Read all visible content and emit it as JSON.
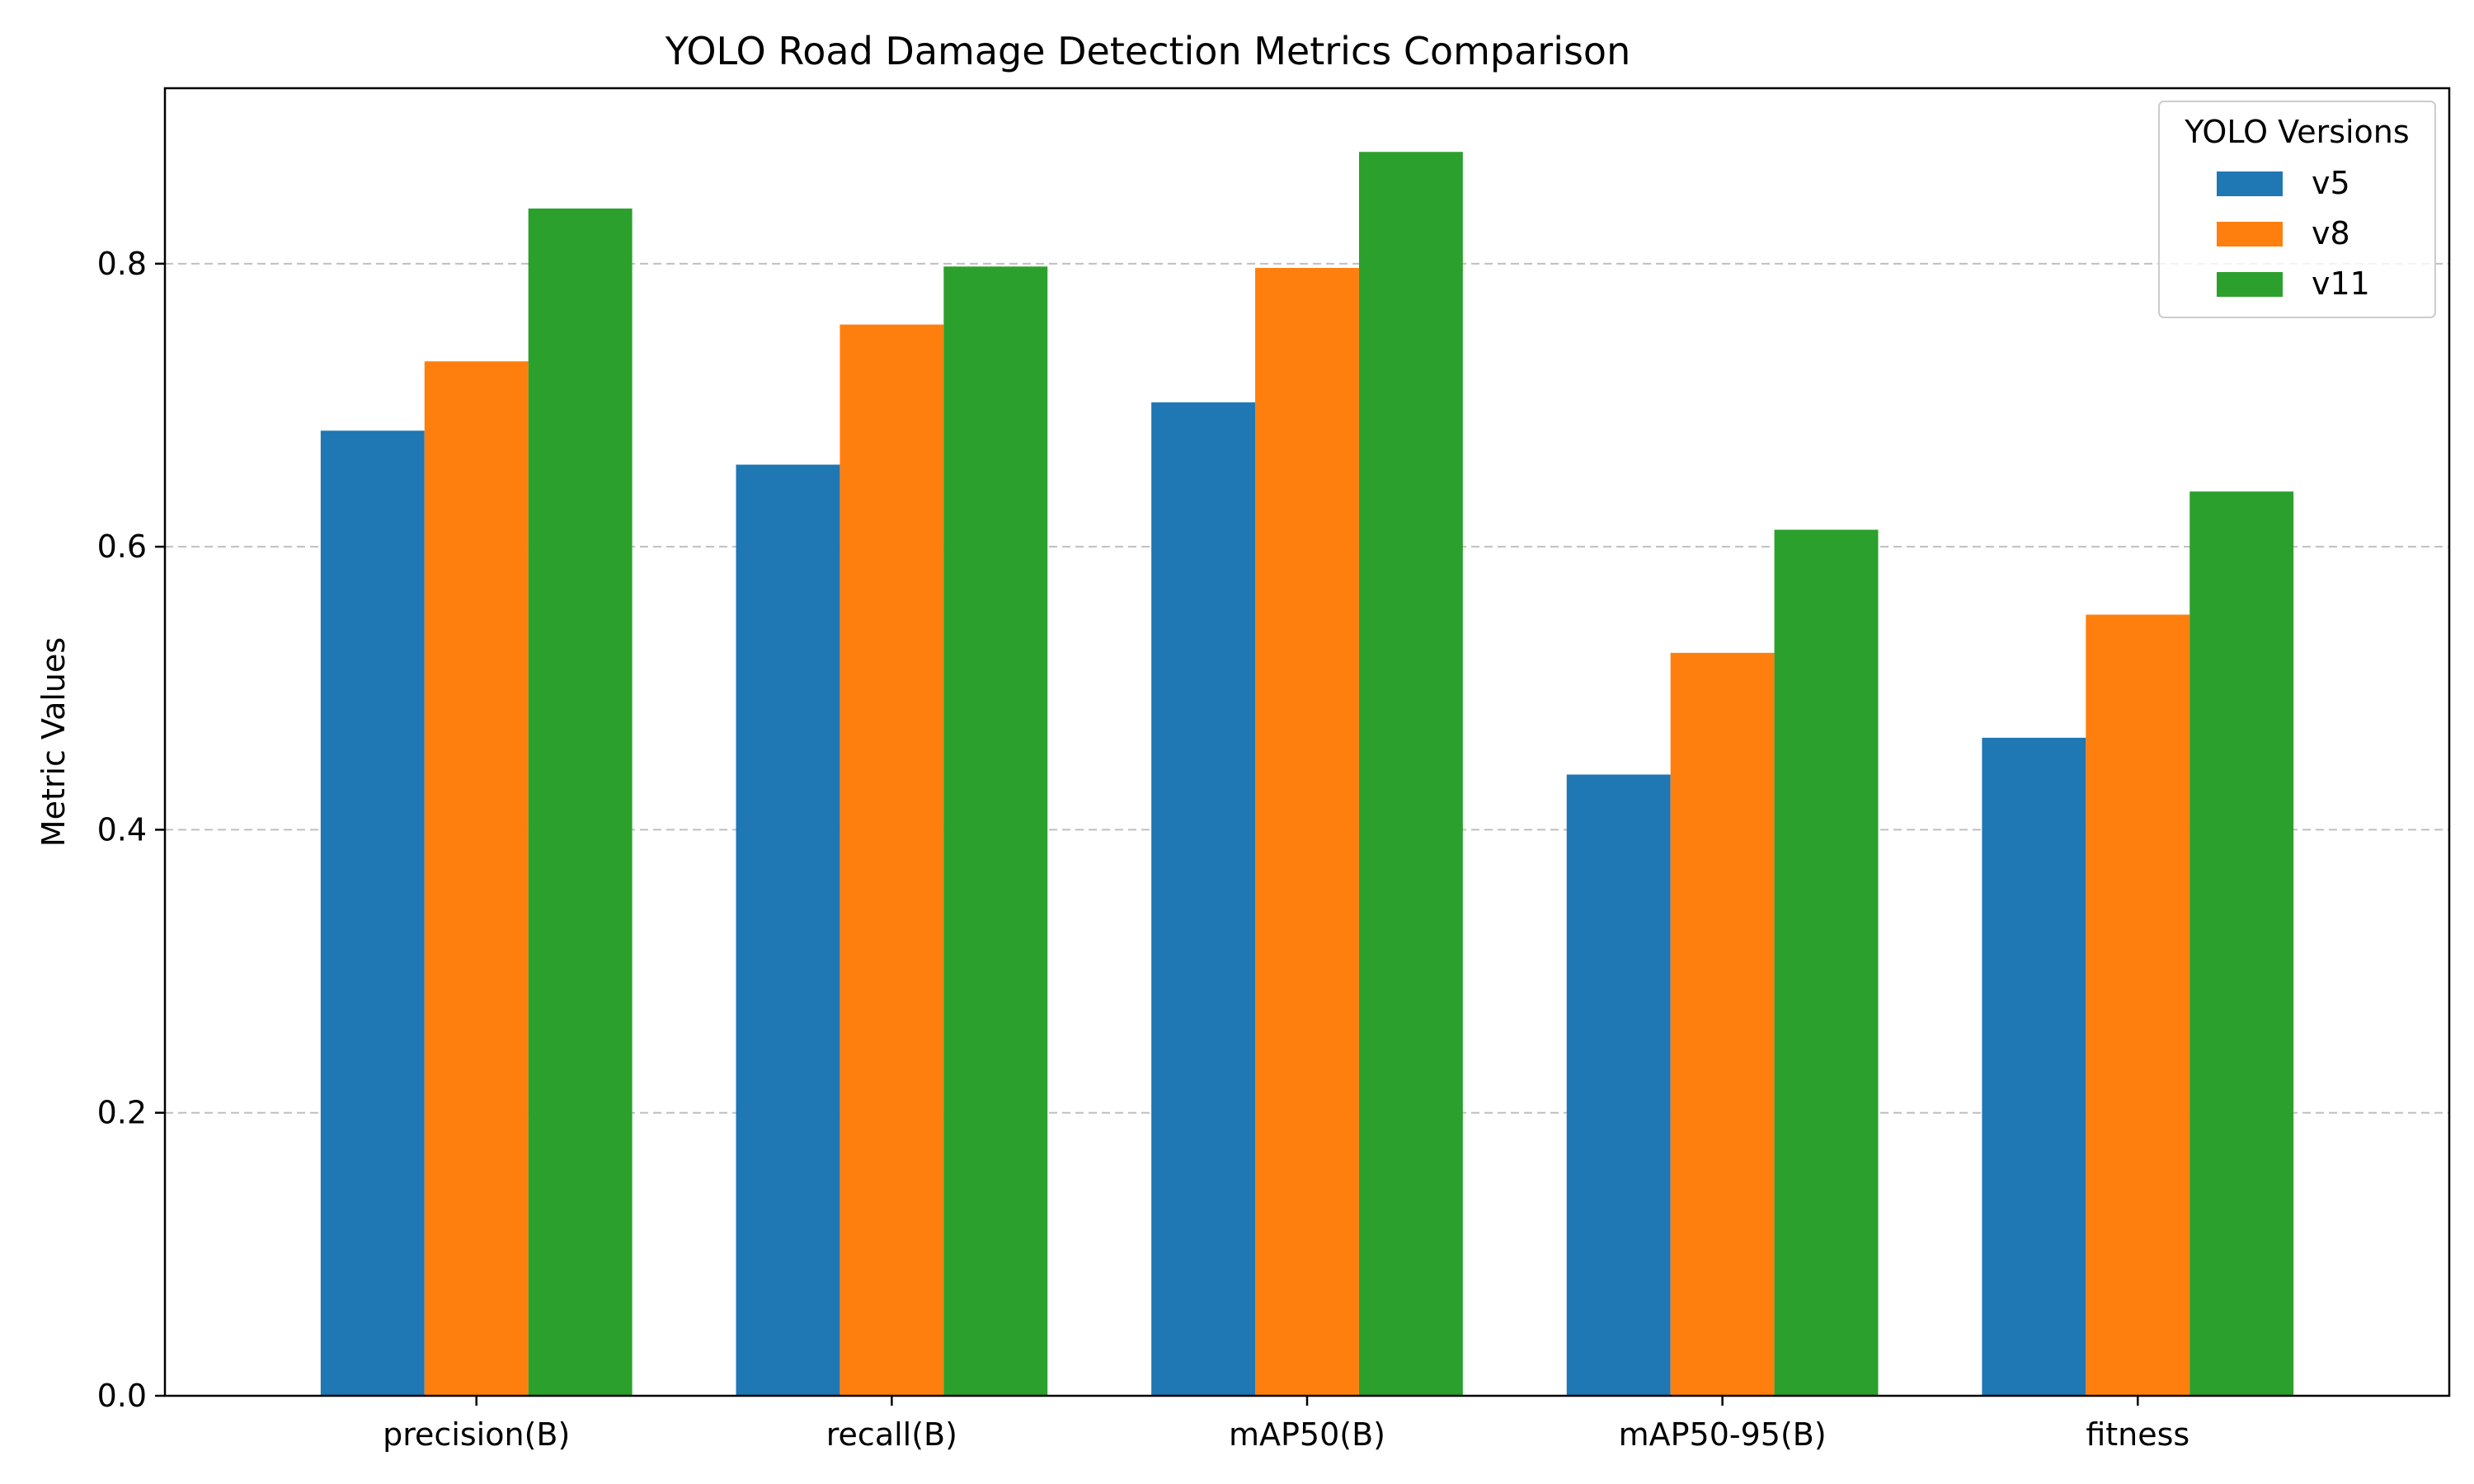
{
  "chart_data": {
    "type": "bar",
    "title": "YOLO Road Damage Detection Metrics Comparison",
    "xlabel": "",
    "ylabel": "Metric Values",
    "categories": [
      "precision(B)",
      "recall(B)",
      "mAP50(B)",
      "mAP50-95(B)",
      "fitness"
    ],
    "series": [
      {
        "name": "v5",
        "color": "#1f77b4",
        "values": [
          0.682,
          0.658,
          0.702,
          0.439,
          0.465
        ]
      },
      {
        "name": "v8",
        "color": "#ff7f0e",
        "values": [
          0.731,
          0.757,
          0.797,
          0.525,
          0.552
        ]
      },
      {
        "name": "v11",
        "color": "#2ca02c",
        "values": [
          0.839,
          0.798,
          0.879,
          0.612,
          0.639
        ]
      }
    ],
    "ylim": [
      0,
      0.924
    ],
    "yticks": [
      0.0,
      0.2,
      0.4,
      0.6,
      0.8
    ],
    "ytick_labels": [
      "0.0",
      "0.2",
      "0.4",
      "0.6",
      "0.8"
    ],
    "grid": {
      "axis": "y",
      "style": "dashed"
    },
    "legend": {
      "title": "YOLO Versions",
      "placement": "top-right"
    }
  }
}
